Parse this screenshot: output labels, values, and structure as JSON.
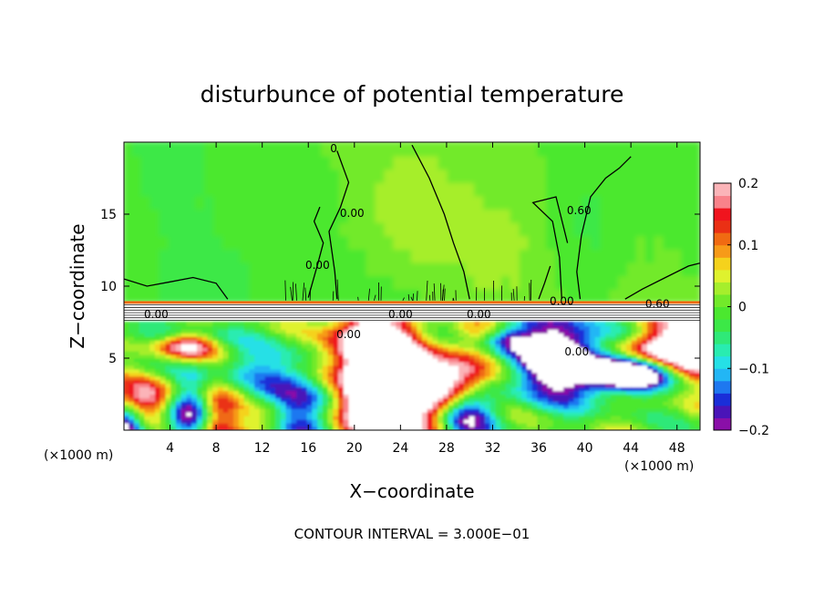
{
  "chart_data": {
    "type": "heatmap",
    "title": "disturbunce of potential temperature",
    "xlabel": "X−coordinate",
    "ylabel": "Z−coordinate",
    "xunit_left": "(×1000 m)",
    "xunit_right": "(×1000 m)",
    "footer": "CONTOUR INTERVAL = 3.000E−01",
    "xlim": [
      0,
      50
    ],
    "ylim": [
      0,
      20
    ],
    "xticks": [
      4,
      8,
      12,
      16,
      20,
      24,
      28,
      32,
      36,
      40,
      44,
      48
    ],
    "yticks": [
      5,
      10,
      15
    ],
    "colorbar": {
      "range": [
        -0.2,
        0.2
      ],
      "tick_values": [
        0.2,
        0.1,
        0,
        -0.1,
        -0.2
      ],
      "tick_labels": [
        "0.2",
        "0.1",
        "0",
        "−0.1",
        "−0.2"
      ],
      "colors": [
        "#8a0fa8",
        "#4a14b8",
        "#1a2ed8",
        "#1e78f0",
        "#22b6f5",
        "#25e0e6",
        "#29ecb0",
        "#2fe978",
        "#3ce847",
        "#4be82f",
        "#72ea2a",
        "#a6ee2c",
        "#dff22e",
        "#f5d21c",
        "#f79a18",
        "#f06a12",
        "#ea3014",
        "#f0141e",
        "#f9828a",
        "#fbb4b8"
      ]
    },
    "contour_labels": [
      "0",
      "0.00",
      "0.00",
      "0.00",
      "0.00",
      "0.00",
      "0.60",
      "0.00",
      "0.00",
      "0.60",
      "0.00"
    ],
    "grid": false,
    "legend": "right"
  }
}
